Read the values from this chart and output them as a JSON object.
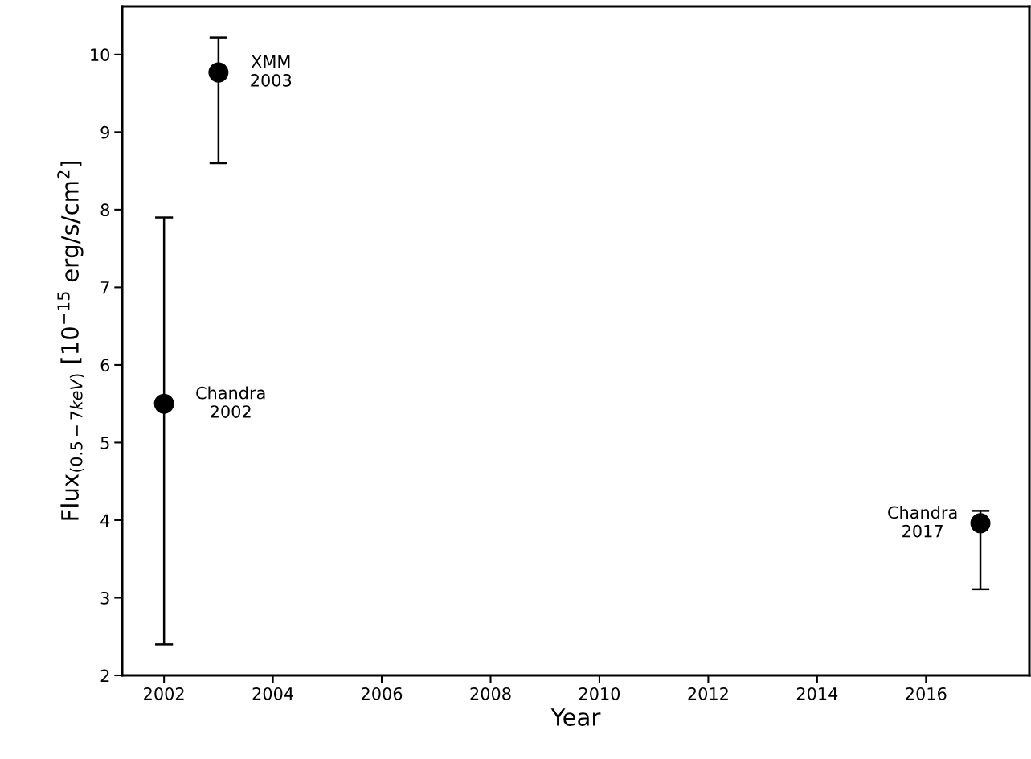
{
  "chart_data": {
    "type": "scatter",
    "xlabel": "Year",
    "ylabel": "Flux$_{(0.5−7keV)}$ [10$^{−15}$ erg/s/cm$^{2}$]",
    "x": [
      2002,
      2003,
      2017
    ],
    "values": [
      5.5,
      9.77,
      3.96
    ],
    "errors": [
      [
        2.4,
        7.9
      ],
      [
        8.6,
        10.22
      ],
      [
        3.11,
        4.12
      ]
    ],
    "color": "#000000",
    "marker": "circle",
    "grid": false,
    "legend": false,
    "xlim": [
      2001.23,
      2017.9
    ],
    "xticks": [
      2002,
      2004,
      2006,
      2008,
      2010,
      2012,
      2014,
      2016
    ],
    "ylim": [
      2,
      10.62
    ],
    "yticks": [
      2,
      3,
      4,
      5,
      6,
      7,
      8,
      9,
      10
    ],
    "annotations": [
      {
        "text": "Chandra\n2002",
        "x": 2002,
        "y": 5.5
      },
      {
        "text": "XMM\n2003",
        "x": 2003,
        "y": 9.77
      },
      {
        "text": "Chandra\n2017",
        "x": 2017,
        "y": 3.96
      }
    ]
  }
}
